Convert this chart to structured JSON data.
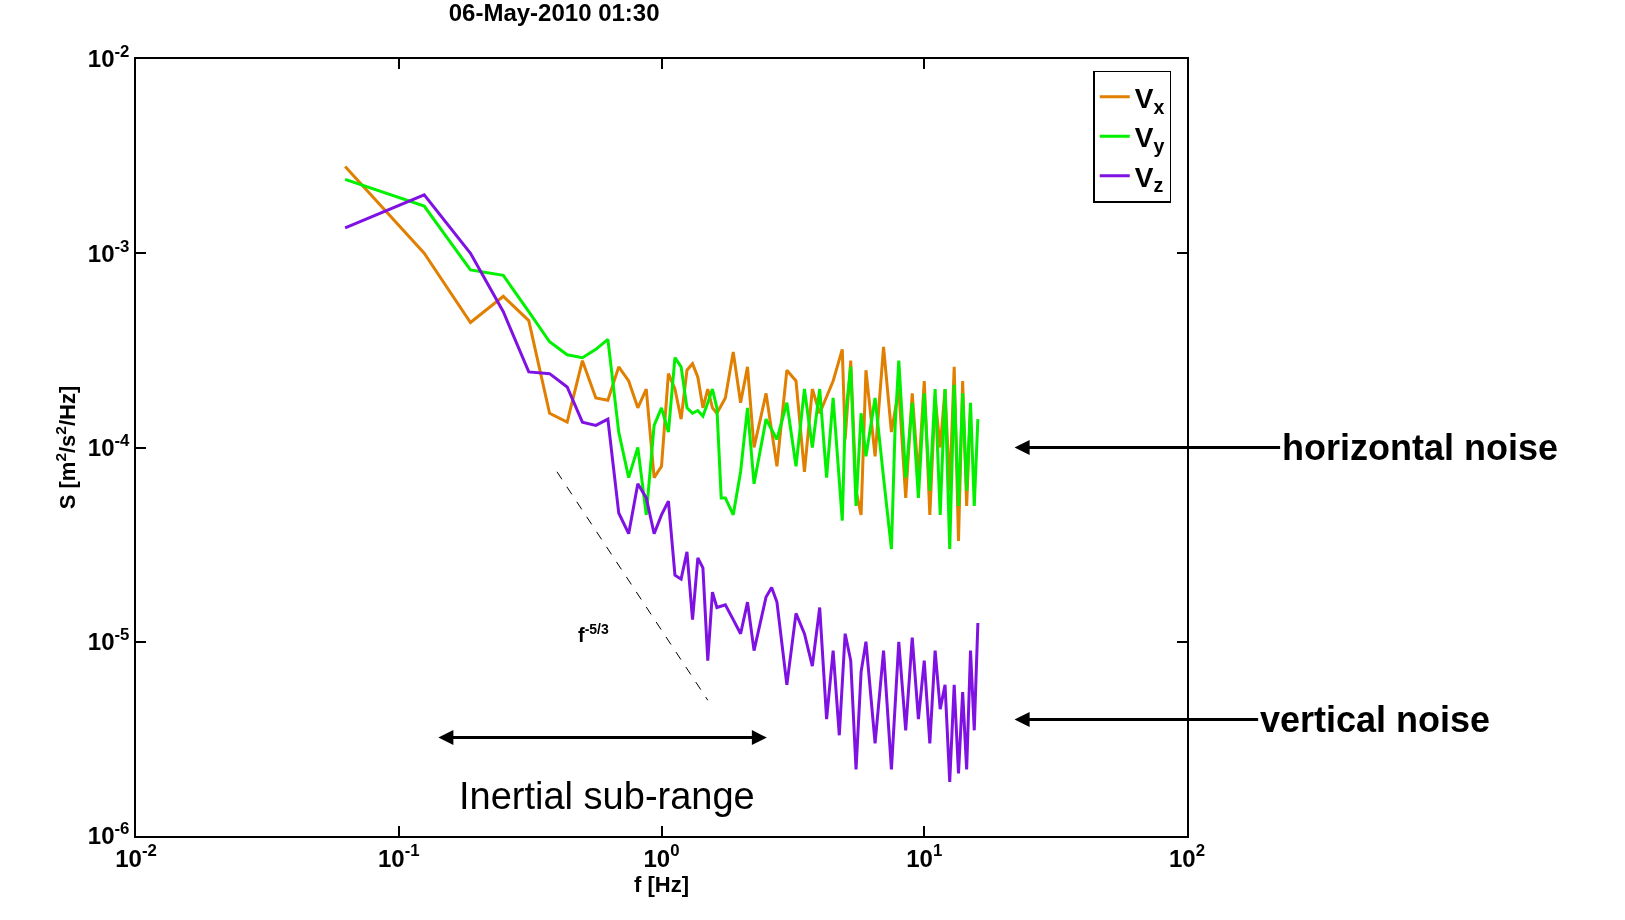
{
  "chart_data": {
    "type": "line",
    "title": "06-May-2010 01:30",
    "xlabel": "f [Hz]",
    "ylabel": "S [m$^{2}$/s$^{2}$/Hz]",
    "log": "xy",
    "grid": false,
    "legend": "top right",
    "xlim": [
      0.01,
      100
    ],
    "ylim": [
      1e-06,
      0.01
    ],
    "xticks": [
      {
        "value": 0.01,
        "label": "10$^{-2}$"
      },
      {
        "value": 0.1,
        "label": "10$^{-1}$"
      },
      {
        "value": 1,
        "label": "10$^{0}$"
      },
      {
        "value": 10,
        "label": "10$^{1}$"
      },
      {
        "value": 100,
        "label": "10$^{2}$"
      }
    ],
    "yticks": [
      {
        "value": 1e-06,
        "label": "10$^{-6}$"
      },
      {
        "value": 1e-05,
        "label": "10$^{-5}$"
      },
      {
        "value": 0.0001,
        "label": "10$^{-4}$"
      },
      {
        "value": 0.001,
        "label": "10$^{-3}$"
      },
      {
        "value": 0.01,
        "label": "10$^{-2}$"
      }
    ],
    "series": [
      {
        "name": "V$_{x}$",
        "color": "#e07f00",
        "x": [
          0.0625,
          0.125,
          0.1875,
          0.25,
          0.3125,
          0.375,
          0.4375,
          0.5,
          0.5625,
          0.625,
          0.6875,
          0.75,
          0.8125,
          0.875,
          0.9375,
          1.0,
          1.0625,
          1.125,
          1.1875,
          1.25,
          1.3125,
          1.375,
          1.4375,
          1.5,
          1.5625,
          1.625,
          1.75,
          1.875,
          2.0,
          2.125,
          2.25,
          2.5,
          2.75,
          3.0,
          3.25,
          3.5,
          3.75,
          4.0,
          4.5,
          4.875,
          5.0,
          5.25,
          5.5,
          5.75,
          6.0,
          6.5,
          7.0,
          7.5,
          8.0,
          8.5,
          9.0,
          9.5,
          10.0,
          10.5,
          11.0,
          11.5,
          12.0,
          12.5,
          13.0,
          13.5,
          14.0,
          14.5,
          15.0
        ],
        "values": [
          0.0028,
          0.001,
          0.00044,
          0.0006,
          0.00045,
          0.00015,
          0.000135,
          0.00028,
          0.00018,
          0.000175,
          0.00026,
          0.00022,
          0.00016,
          0.0002,
          7e-05,
          8e-05,
          0.00024,
          0.0002,
          0.00014,
          0.00025,
          0.00027,
          0.00023,
          0.00016,
          0.0002,
          0.00016,
          0.00015,
          0.00018,
          0.00031,
          0.00017,
          0.00026,
          0.0001,
          0.00019,
          8e-05,
          0.00025,
          0.00022,
          7.5e-05,
          0.0002,
          0.00015,
          0.00022,
          0.00032,
          0.00011,
          0.00028,
          6e-05,
          4.5e-05,
          0.00025,
          9e-05,
          0.00033,
          0.00012,
          0.0002,
          5.5e-05,
          0.00019,
          7e-05,
          0.00022,
          4.5e-05,
          0.00018,
          0.0001,
          0.0002,
          6e-05,
          0.00026,
          3.3e-05,
          0.00022,
          5e-05,
          0.00016
        ]
      },
      {
        "name": "V$_{y}$",
        "color": "#00f000",
        "x": [
          0.0625,
          0.125,
          0.1875,
          0.25,
          0.3125,
          0.375,
          0.4375,
          0.5,
          0.5625,
          0.625,
          0.6875,
          0.75,
          0.8125,
          0.875,
          0.9375,
          1.0,
          1.0625,
          1.125,
          1.1875,
          1.25,
          1.3125,
          1.375,
          1.4375,
          1.5,
          1.5625,
          1.625,
          1.6875,
          1.75,
          1.875,
          2.0,
          2.125,
          2.25,
          2.5,
          2.75,
          3.0,
          3.25,
          3.5,
          3.75,
          4.0,
          4.25,
          4.5,
          4.875,
          5.0,
          5.25,
          5.5,
          5.75,
          6.0,
          6.5,
          7.0,
          7.5,
          7.75,
          8.0,
          8.5,
          9.0,
          9.5,
          10.0,
          10.5,
          11.0,
          11.5,
          12.0,
          12.5,
          13.0,
          13.5,
          14.0,
          14.5,
          15.0,
          15.5,
          16.0
        ],
        "values": [
          0.0024,
          0.00175,
          0.00082,
          0.00077,
          0.0005,
          0.00035,
          0.0003,
          0.00029,
          0.00032,
          0.00036,
          0.00012,
          7e-05,
          0.0001,
          4.5e-05,
          0.00013,
          0.00016,
          0.00012,
          0.00029,
          0.00026,
          0.00016,
          0.00015,
          0.000155,
          0.000145,
          0.00017,
          0.0002,
          0.00016,
          5.5e-05,
          5.5e-05,
          4.5e-05,
          7.5e-05,
          0.00016,
          6.5e-05,
          0.00014,
          0.00011,
          0.00017,
          8e-05,
          0.0002,
          0.0001,
          0.0002,
          7e-05,
          0.00018,
          4.2e-05,
          0.00014,
          0.00026,
          5e-05,
          0.00015,
          9e-05,
          0.00018,
          7e-05,
          3e-05,
          0.00013,
          0.00028,
          7e-05,
          0.00017,
          5.5e-05,
          0.00019,
          6e-05,
          0.0002,
          4.5e-05,
          0.0002,
          3e-05,
          0.00021,
          5e-05,
          0.00019,
          6e-05,
          0.00017,
          5e-05,
          0.00014
        ]
      },
      {
        "name": "V$_{z}$",
        "color": "#7f12e3",
        "x": [
          0.0625,
          0.125,
          0.1875,
          0.25,
          0.3125,
          0.375,
          0.4375,
          0.5,
          0.5625,
          0.625,
          0.6875,
          0.75,
          0.8125,
          0.875,
          0.9375,
          1.0,
          1.0625,
          1.125,
          1.1875,
          1.25,
          1.3125,
          1.375,
          1.4375,
          1.5,
          1.5625,
          1.625,
          1.75,
          1.875,
          2.0,
          2.125,
          2.25,
          2.5,
          2.625,
          2.75,
          3.0,
          3.25,
          3.5,
          3.75,
          4.0,
          4.25,
          4.5,
          4.75,
          5.0,
          5.25,
          5.5,
          5.75,
          6.0,
          6.5,
          7.0,
          7.5,
          8.0,
          8.5,
          9.0,
          9.5,
          10.0,
          10.5,
          11.0,
          11.5,
          12.0,
          12.5,
          13.0,
          13.5,
          14.0,
          14.5,
          15.0,
          15.5,
          16.0
        ],
        "values": [
          0.00135,
          0.002,
          0.001,
          0.0005,
          0.000245,
          0.00024,
          0.000205,
          0.000135,
          0.00013,
          0.00014,
          4.6e-05,
          3.6e-05,
          6.5e-05,
          5.5e-05,
          3.6e-05,
          4.5e-05,
          5.3e-05,
          2.2e-05,
          2.1e-05,
          2.9e-05,
          1.3e-05,
          2.7e-05,
          2.4e-05,
          8e-06,
          1.8e-05,
          1.5e-05,
          1.55e-05,
          1.3e-05,
          1.1e-05,
          1.6e-05,
          9e-06,
          1.7e-05,
          1.9e-05,
          1.6e-05,
          6e-06,
          1.4e-05,
          1.1e-05,
          7.5e-06,
          1.5e-05,
          4e-06,
          9e-06,
          3.3e-06,
          1.1e-05,
          8e-06,
          2.2e-06,
          7e-06,
          1e-05,
          3e-06,
          9e-06,
          2.2e-06,
          1e-05,
          3.5e-06,
          1.05e-05,
          4e-06,
          8e-06,
          3e-06,
          9e-06,
          4.5e-06,
          6e-06,
          1.9e-06,
          6e-06,
          2.1e-06,
          5.5e-06,
          2.2e-06,
          9e-06,
          3.5e-06,
          1.25e-05
        ]
      },
      {
        "type": "line",
        "color": "#000000",
        "line_style": "dashed",
        "x": [
          0.4,
          1.5
        ],
        "values": [
          7.5e-05,
          5e-06
        ]
      }
    ],
    "annotations": [
      "f$^{-5/3}$",
      "horizontal noise",
      "vertical noise",
      "Inertial sub-range"
    ]
  }
}
